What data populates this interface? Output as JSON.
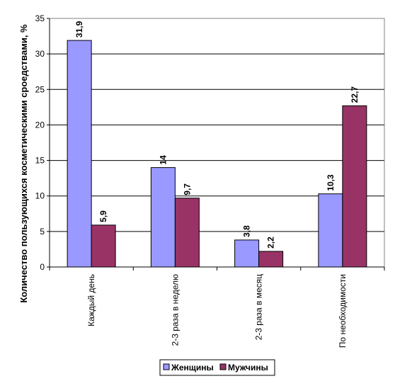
{
  "chart_data": {
    "type": "bar",
    "title": "",
    "xlabel": "",
    "ylabel": "Количество пользующихся косметическими сроедствами, %",
    "ylim": [
      0,
      35
    ],
    "ytick_step": 5,
    "ytick_labels": [
      "0",
      "5",
      "10",
      "15",
      "20",
      "25",
      "30",
      "35"
    ],
    "grid": true,
    "legend_position": "bottom",
    "categories": [
      "Каждый день",
      "2-3 раза в неделю",
      "2-3 раза в месяц",
      "По необходимости"
    ],
    "series": [
      {
        "name": "Женщины",
        "color": "#9999ff",
        "values": [
          31.9,
          14,
          3.8,
          10.3
        ],
        "labels": [
          "31,9",
          "14",
          "3,8",
          "10,3"
        ]
      },
      {
        "name": "Мужчины",
        "color": "#993366",
        "values": [
          5.9,
          9.7,
          2.2,
          22.7
        ],
        "labels": [
          "5,9",
          "9,7",
          "2,2",
          "22,7"
        ]
      }
    ]
  }
}
